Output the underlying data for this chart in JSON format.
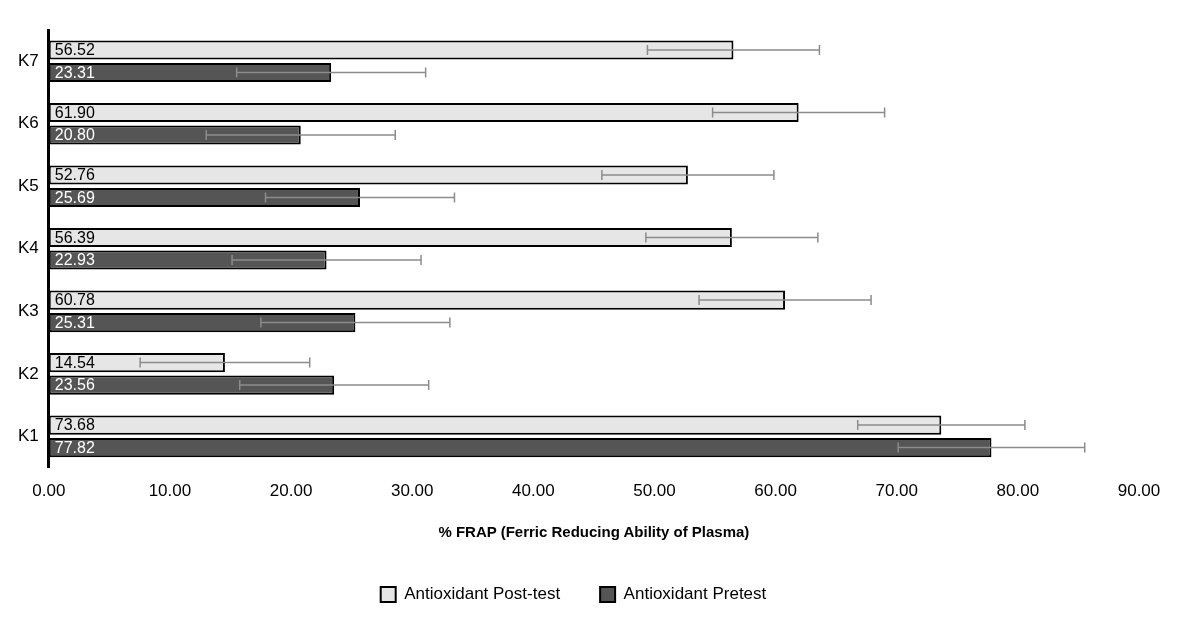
{
  "chart_data": {
    "type": "bar",
    "orientation": "horizontal",
    "xlabel": "% FRAP (Ferric Reducing Ability of Plasma)",
    "categories": [
      "K7",
      "K6",
      "K5",
      "K4",
      "K3",
      "K2",
      "K1"
    ],
    "series": [
      {
        "name": "Antioxidant Post-test",
        "color": "#e6e6e6",
        "values": [
          56.52,
          61.9,
          52.76,
          56.39,
          60.78,
          14.54,
          73.68
        ],
        "errors": [
          7.1,
          7.1,
          7.1,
          7.1,
          7.1,
          7.0,
          6.9
        ],
        "value_labels": [
          "56.52",
          "61.90",
          "52.76",
          "56.39",
          "60.78",
          "14.54",
          "73.68"
        ]
      },
      {
        "name": "Antioxidant Pretest",
        "color": "#555555",
        "values": [
          23.31,
          20.8,
          25.69,
          22.93,
          25.31,
          23.56,
          77.82
        ],
        "errors": [
          7.8,
          7.8,
          7.8,
          7.8,
          7.8,
          7.8,
          7.7
        ],
        "value_labels": [
          "23.31",
          "20.80",
          "25.69",
          "22.93",
          "25.31",
          "23.56",
          "77.82"
        ]
      }
    ],
    "xlim": [
      0,
      90
    ],
    "xticks": [
      {
        "value": 0,
        "label": "0.00"
      },
      {
        "value": 10,
        "label": "10.00"
      },
      {
        "value": 20,
        "label": "20.00"
      },
      {
        "value": 30,
        "label": "30.00"
      },
      {
        "value": 40,
        "label": "40.00"
      },
      {
        "value": 50,
        "label": "50.00"
      },
      {
        "value": 60,
        "label": "60.00"
      },
      {
        "value": 70,
        "label": "70.00"
      },
      {
        "value": 80,
        "label": "80.00"
      },
      {
        "value": 90,
        "label": "90.00"
      }
    ],
    "grid": false,
    "legend": "bottom"
  }
}
